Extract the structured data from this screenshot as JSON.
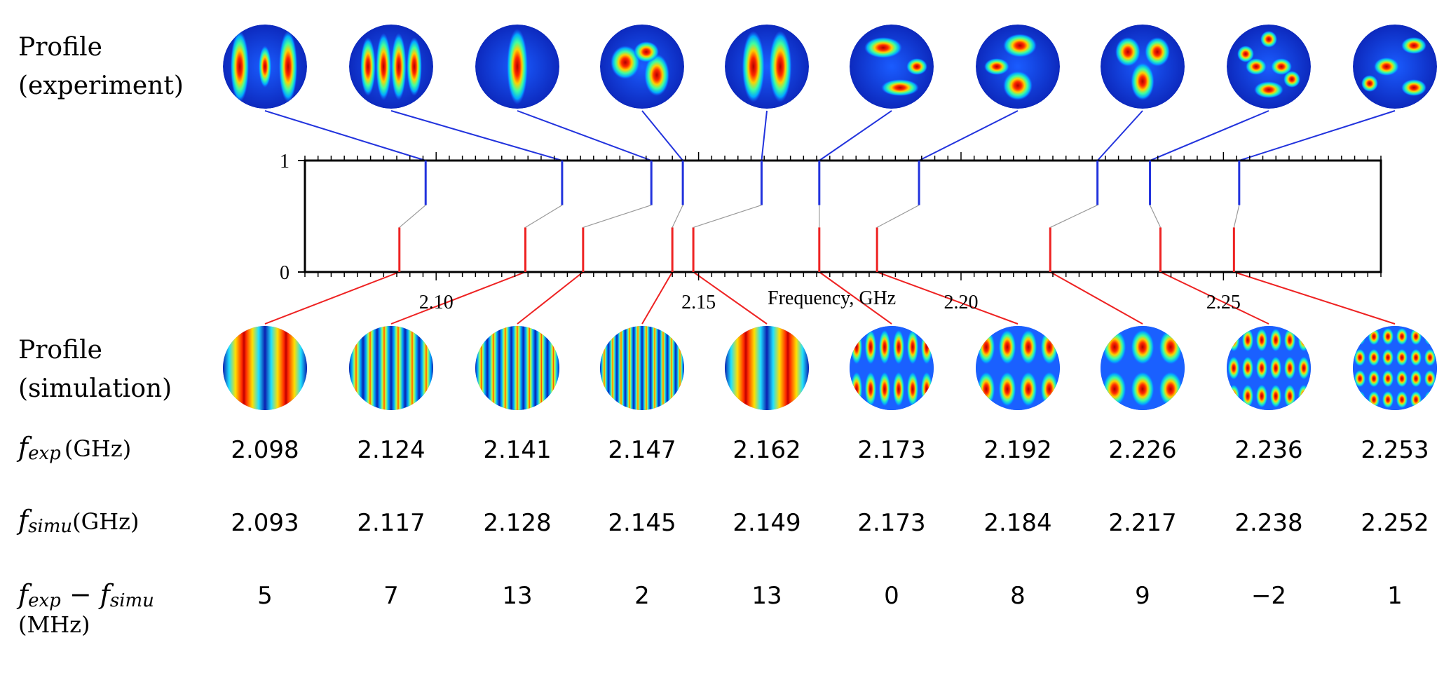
{
  "labels": {
    "experiment_line1": "Profile",
    "experiment_line2": "(experiment)",
    "simulation_line1": "Profile",
    "simulation_line2": "(simulation)",
    "fexp_f": "f",
    "fexp_sub": "exp",
    "fexp_unit": "(GHz)",
    "fsimu_f": "f",
    "fsimu_sub": "simu",
    "fsimu_unit": "(GHz)",
    "diff_f1": "f",
    "diff_sub1": "exp",
    "diff_minus": " − ",
    "diff_f2": "f",
    "diff_sub2": "simu",
    "diff_unit": "(MHz)"
  },
  "table": {
    "f_exp": [
      "2.098",
      "2.124",
      "2.141",
      "2.147",
      "2.162",
      "2.173",
      "2.192",
      "2.226",
      "2.236",
      "2.253"
    ],
    "f_simu": [
      "2.093",
      "2.117",
      "2.128",
      "2.145",
      "2.149",
      "2.173",
      "2.184",
      "2.217",
      "2.238",
      "2.252"
    ],
    "diff": [
      "5",
      "7",
      "13",
      "2",
      "13",
      "0",
      "8",
      "9",
      "−2",
      "1"
    ]
  },
  "colors": {
    "experiment": "#2233dd",
    "simulation": "#ee2222",
    "connector": "#999999",
    "heat_low": "#00008f",
    "heat_high": "#b00000"
  },
  "chart_data": {
    "type": "stem",
    "xlabel": "Frequency, GHz",
    "ylabel": "",
    "xlim": [
      2.075,
      2.28
    ],
    "ylim": [
      0,
      1
    ],
    "x_ticks": [
      2.1,
      2.15,
      2.2,
      2.25
    ],
    "x_tick_labels": [
      "2.10",
      "2.15",
      "2.20",
      "2.25"
    ],
    "y_ticks": [
      0,
      1
    ],
    "y_tick_labels": [
      "0",
      "1"
    ],
    "series": [
      {
        "name": "experiment",
        "x": [
          2.098,
          2.124,
          2.141,
          2.147,
          2.162,
          2.173,
          2.192,
          2.226,
          2.236,
          2.253
        ],
        "stem_from": 0.6,
        "stem_to": 1.0
      },
      {
        "name": "simulation",
        "x": [
          2.093,
          2.117,
          2.128,
          2.145,
          2.149,
          2.173,
          2.184,
          2.217,
          2.238,
          2.252
        ],
        "stem_from": 0.0,
        "stem_to": 0.4
      }
    ]
  },
  "profiles": {
    "experiment": [
      {
        "pattern": "two_edge_stripes"
      },
      {
        "pattern": "four_stripes"
      },
      {
        "pattern": "single_stripe"
      },
      {
        "pattern": "irregular_blobs"
      },
      {
        "pattern": "two_stripes"
      },
      {
        "pattern": "top_bottom_blobs"
      },
      {
        "pattern": "two_vertical_blobs"
      },
      {
        "pattern": "v_shape"
      },
      {
        "pattern": "scattered_spots"
      },
      {
        "pattern": "center_spots"
      }
    ],
    "simulation": [
      {
        "pattern": "stripes",
        "n": 2
      },
      {
        "pattern": "stripes",
        "n": 6
      },
      {
        "pattern": "stripes",
        "n": 7
      },
      {
        "pattern": "stripes",
        "n": 10
      },
      {
        "pattern": "stripes",
        "n": 2
      },
      {
        "pattern": "grid",
        "cols": 6,
        "rows": 2
      },
      {
        "pattern": "grid",
        "cols": 4,
        "rows": 2
      },
      {
        "pattern": "grid",
        "cols": 3,
        "rows": 2
      },
      {
        "pattern": "grid",
        "cols": 6,
        "rows": 3
      },
      {
        "pattern": "grid",
        "cols": 6,
        "rows": 4
      }
    ]
  }
}
